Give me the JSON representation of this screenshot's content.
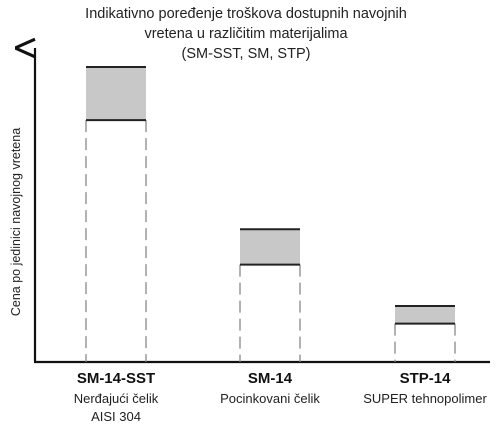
{
  "chart_data": {
    "type": "bar",
    "title_lines": [
      "Indikativno poređenje troškova dostupnih navojnih",
      "vretena u različitim materijalima",
      "(SM-SST, SM, STP)"
    ],
    "ylabel": "Cena po jedinici navojnog vretena",
    "xlabel": "",
    "ylim": [
      0,
      100
    ],
    "grid": false,
    "categories": [
      {
        "name": "SM-14-SST",
        "material_lines": [
          "Nerđajući čelik",
          "AISI 304"
        ]
      },
      {
        "name": "SM-14",
        "material_lines": [
          "Pocinkovani čelik"
        ]
      },
      {
        "name": "STP-14",
        "material_lines": [
          "SUPER tehnopolimer"
        ]
      }
    ],
    "cost_ranges": [
      {
        "low": 82,
        "high": 100
      },
      {
        "low": 33,
        "high": 45
      },
      {
        "low": 13,
        "high": 19
      }
    ],
    "colors": {
      "range_fill": "#c8c8c8",
      "range_border": "#222222",
      "dashed": "#888888",
      "axis": "#111111"
    }
  }
}
